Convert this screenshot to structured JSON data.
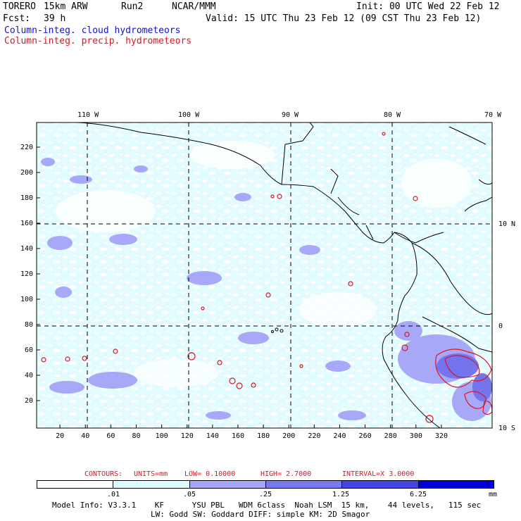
{
  "header": {
    "model": "TORERO",
    "resolution": "15km ARW",
    "run": "Run2",
    "org": "NCAR/MMM",
    "init": "Init: 00 UTC Wed 22 Feb 12",
    "fcst_label": "Fcst:",
    "fcst_value": "39 h",
    "valid": "Valid: 15 UTC Thu 23 Feb 12 (09 CST Thu 23 Feb 12)"
  },
  "legend": {
    "cloud": "Column-integ. cloud hydrometeors",
    "precip": "Column-integ. precip. hydrometeors"
  },
  "map": {
    "lon_labels": [
      "110 W",
      "100 W",
      "90 W",
      "80 W",
      "70 W"
    ],
    "lat_labels": [
      "10 N",
      "0",
      "10 S"
    ],
    "x_ticks": [
      "20",
      "40",
      "60",
      "80",
      "100",
      "120",
      "140",
      "160",
      "180",
      "200",
      "220",
      "240",
      "260",
      "280",
      "300",
      "320"
    ],
    "y_ticks": [
      "220",
      "200",
      "180",
      "160",
      "140",
      "120",
      "100",
      "80",
      "60",
      "40",
      "20"
    ]
  },
  "contours": {
    "label": "CONTOURS:",
    "units": "UNITS=mm",
    "low": "LOW= 0.10000",
    "high": "HIGH= 2.7000",
    "interval": "INTERVAL=X 3.0000"
  },
  "colorbar": {
    "labels": [
      ".01",
      ".05",
      ".25",
      "1.25",
      "6.25"
    ],
    "unit": "mm",
    "colors": [
      "#ffffff",
      "#dcfaff",
      "#a5a5fa",
      "#7878f0",
      "#4646e6",
      "#0000dc"
    ]
  },
  "model_info": {
    "line1": "Model Info: V3.3.1    KF      YSU PBL   WDM 6class  Noah LSM  15 km,    44 levels,   115 sec",
    "line2": "LW: Godd SW: Goddard DIFF: simple KM: 2D Smagor"
  }
}
